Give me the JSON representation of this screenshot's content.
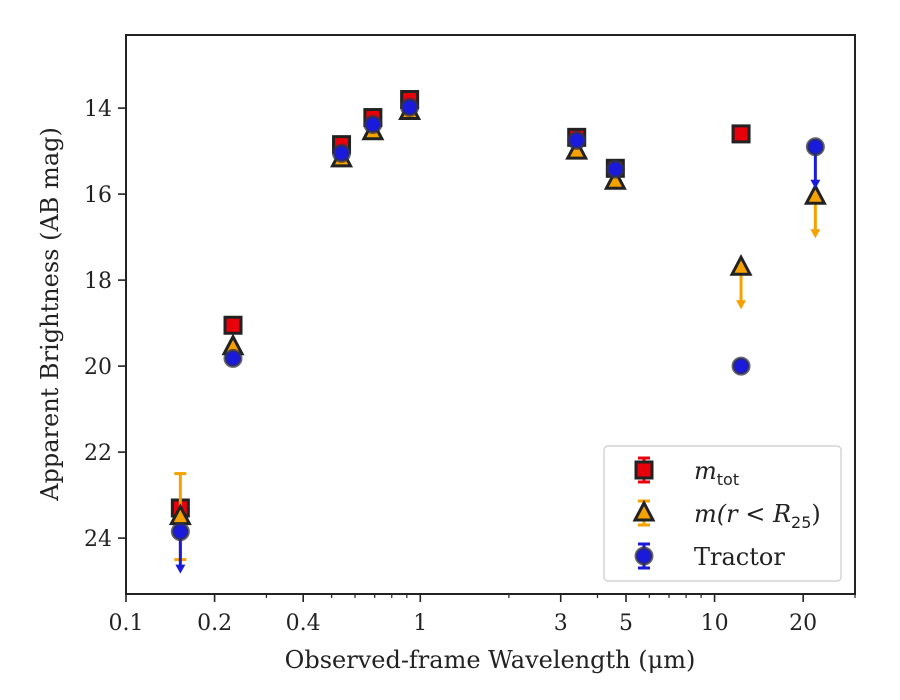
{
  "chart_data": {
    "type": "scatter",
    "title": "",
    "xlabel": "Observed-frame Wavelength (μm)",
    "ylabel": "Apparent Brightness (AB mag)",
    "x_scale": "log",
    "xlim": [
      0.1,
      30
    ],
    "ylim": [
      25.3,
      12.3
    ],
    "y_inverted": true,
    "x_ticks": [
      {
        "value": 0.1,
        "label": "0.1"
      },
      {
        "value": 0.2,
        "label": "0.2"
      },
      {
        "value": 0.4,
        "label": "0.4"
      },
      {
        "value": 1,
        "label": "1"
      },
      {
        "value": 3,
        "label": "3"
      },
      {
        "value": 5,
        "label": "5"
      },
      {
        "value": 10,
        "label": "10"
      },
      {
        "value": 20,
        "label": "20"
      }
    ],
    "y_ticks": [
      {
        "value": 14,
        "label": "14"
      },
      {
        "value": 16,
        "label": "16"
      },
      {
        "value": 18,
        "label": "18"
      },
      {
        "value": 20,
        "label": "20"
      },
      {
        "value": 22,
        "label": "22"
      },
      {
        "value": 24,
        "label": "24"
      }
    ],
    "legend": {
      "position": "lower-right",
      "entries": [
        {
          "series": 0,
          "label_main": "m",
          "label_sub": "tot",
          "label_rest": ""
        },
        {
          "series": 1,
          "label_main": "m(r < R",
          "label_sub": "25",
          "label_rest": ")"
        },
        {
          "series": 2,
          "label_main": "Tractor",
          "label_sub": "",
          "label_rest": ""
        }
      ]
    },
    "series": [
      {
        "name": "m_tot",
        "marker": "square",
        "color": "#e8000b",
        "edge": "#222222",
        "points": [
          {
            "x": 0.153,
            "y": 23.3,
            "err": 0
          },
          {
            "x": 0.231,
            "y": 19.05,
            "err": 0
          },
          {
            "x": 0.54,
            "y": 14.85,
            "err": 0.1
          },
          {
            "x": 0.69,
            "y": 14.22,
            "err": 0.1
          },
          {
            "x": 0.92,
            "y": 13.8,
            "err": 0.1
          },
          {
            "x": 3.4,
            "y": 14.68,
            "err": 0.12
          },
          {
            "x": 4.6,
            "y": 15.4,
            "err": 0.1
          },
          {
            "x": 12.3,
            "y": 14.6,
            "err": 0
          }
        ]
      },
      {
        "name": "m(r<R25)",
        "marker": "triangle",
        "color": "#f5a100",
        "edge": "#222222",
        "points": [
          {
            "x": 0.153,
            "y": 23.5,
            "err": 1.0
          },
          {
            "x": 0.231,
            "y": 19.55,
            "err": 0
          },
          {
            "x": 0.54,
            "y": 15.18,
            "err": 0
          },
          {
            "x": 0.69,
            "y": 14.55,
            "err": 0
          },
          {
            "x": 0.92,
            "y": 14.08,
            "err": 0
          },
          {
            "x": 3.4,
            "y": 15.0,
            "err": 0
          },
          {
            "x": 4.6,
            "y": 15.7,
            "err": 0
          },
          {
            "x": 12.3,
            "y": 17.7,
            "err": 0,
            "upper_limit": true
          },
          {
            "x": 22,
            "y": 16.05,
            "err": 0,
            "upper_limit": true
          }
        ]
      },
      {
        "name": "Tractor",
        "marker": "circle",
        "color": "#1a1adc",
        "edge": "#333344",
        "points": [
          {
            "x": 0.153,
            "y": 23.85,
            "err": 0,
            "upper_limit": true
          },
          {
            "x": 0.231,
            "y": 19.82,
            "err": 0
          },
          {
            "x": 0.54,
            "y": 15.05,
            "err": 0
          },
          {
            "x": 0.69,
            "y": 14.38,
            "err": 0
          },
          {
            "x": 0.92,
            "y": 13.98,
            "err": 0
          },
          {
            "x": 3.4,
            "y": 14.75,
            "err": 0
          },
          {
            "x": 4.6,
            "y": 15.42,
            "err": 0
          },
          {
            "x": 12.3,
            "y": 20.0,
            "err": 0
          },
          {
            "x": 22,
            "y": 14.9,
            "err": 0,
            "upper_limit": true
          }
        ]
      }
    ]
  }
}
